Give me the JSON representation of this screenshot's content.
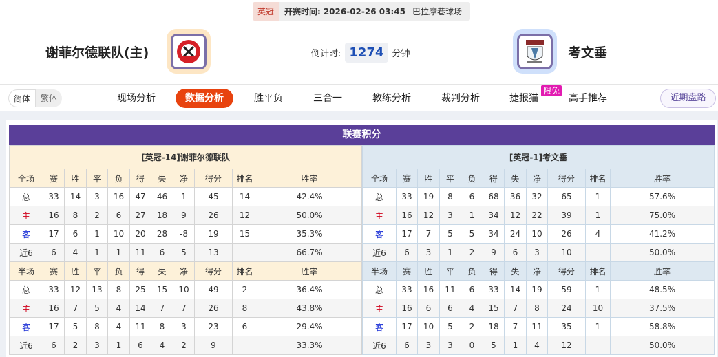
{
  "match": {
    "league": "英冠",
    "time_label": "开赛时间:",
    "time": "2026-02-26 03:45",
    "venue": "巴拉摩巷球场"
  },
  "home": {
    "name": "谢菲尔德联队(主)",
    "logo": "sheffield-united-crest"
  },
  "away": {
    "name": "考文垂",
    "logo": "coventry-city-crest"
  },
  "countdown": {
    "label": "倒计时:",
    "value": "1274",
    "unit": "分钟"
  },
  "lang": [
    "简体",
    "繁体"
  ],
  "nav": [
    "现场分析",
    "数据分析",
    "胜平负",
    "三合一",
    "教练分析",
    "裁判分析",
    "捷报猫",
    "高手推荐"
  ],
  "nav_badge": "限免",
  "recent_button": "近期盘路",
  "section_title": "联赛积分",
  "colors": {
    "accent": "#e8430f",
    "title_bar": "#5a3f99",
    "home_label": "#d0021b",
    "away_label": "#1a2fd6"
  },
  "tables": [
    {
      "caption": "[英冠-14]谢菲尔德联队",
      "full": {
        "header": [
          "全场",
          "赛",
          "胜",
          "平",
          "负",
          "得",
          "失",
          "净",
          "得分",
          "排名",
          "胜率"
        ],
        "rows": [
          [
            "总",
            "33",
            "14",
            "3",
            "16",
            "47",
            "46",
            "1",
            "45",
            "14",
            "42.4%"
          ],
          [
            "主",
            "16",
            "8",
            "2",
            "6",
            "27",
            "18",
            "9",
            "26",
            "12",
            "50.0%"
          ],
          [
            "客",
            "17",
            "6",
            "1",
            "10",
            "20",
            "28",
            "-8",
            "19",
            "15",
            "35.3%"
          ],
          [
            "近6",
            "6",
            "4",
            "1",
            "1",
            "11",
            "6",
            "5",
            "13",
            "",
            "66.7%"
          ]
        ]
      },
      "half": {
        "header": [
          "半场",
          "赛",
          "胜",
          "平",
          "负",
          "得",
          "失",
          "净",
          "得分",
          "排名",
          "胜率"
        ],
        "rows": [
          [
            "总",
            "33",
            "12",
            "13",
            "8",
            "25",
            "15",
            "10",
            "49",
            "2",
            "36.4%"
          ],
          [
            "主",
            "16",
            "7",
            "5",
            "4",
            "14",
            "7",
            "7",
            "26",
            "8",
            "43.8%"
          ],
          [
            "客",
            "17",
            "5",
            "8",
            "4",
            "11",
            "8",
            "3",
            "23",
            "6",
            "29.4%"
          ],
          [
            "近6",
            "6",
            "2",
            "3",
            "1",
            "6",
            "4",
            "2",
            "9",
            "",
            "33.3%"
          ]
        ]
      }
    },
    {
      "caption": "[英冠-1]考文垂",
      "full": {
        "header": [
          "全场",
          "赛",
          "胜",
          "平",
          "负",
          "得",
          "失",
          "净",
          "得分",
          "排名",
          "胜率"
        ],
        "rows": [
          [
            "总",
            "33",
            "19",
            "8",
            "6",
            "68",
            "36",
            "32",
            "65",
            "1",
            "57.6%"
          ],
          [
            "主",
            "16",
            "12",
            "3",
            "1",
            "34",
            "12",
            "22",
            "39",
            "1",
            "75.0%"
          ],
          [
            "客",
            "17",
            "7",
            "5",
            "5",
            "34",
            "24",
            "10",
            "26",
            "4",
            "41.2%"
          ],
          [
            "近6",
            "6",
            "3",
            "1",
            "2",
            "9",
            "6",
            "3",
            "10",
            "",
            "50.0%"
          ]
        ]
      },
      "half": {
        "header": [
          "半场",
          "赛",
          "胜",
          "平",
          "负",
          "得",
          "失",
          "净",
          "得分",
          "排名",
          "胜率"
        ],
        "rows": [
          [
            "总",
            "33",
            "16",
            "11",
            "6",
            "33",
            "14",
            "19",
            "59",
            "1",
            "48.5%"
          ],
          [
            "主",
            "16",
            "6",
            "6",
            "4",
            "15",
            "7",
            "8",
            "24",
            "10",
            "37.5%"
          ],
          [
            "客",
            "17",
            "10",
            "5",
            "2",
            "18",
            "7",
            "11",
            "35",
            "1",
            "58.8%"
          ],
          [
            "近6",
            "6",
            "3",
            "3",
            "0",
            "5",
            "1",
            "4",
            "12",
            "",
            "50.0%"
          ]
        ]
      }
    }
  ]
}
